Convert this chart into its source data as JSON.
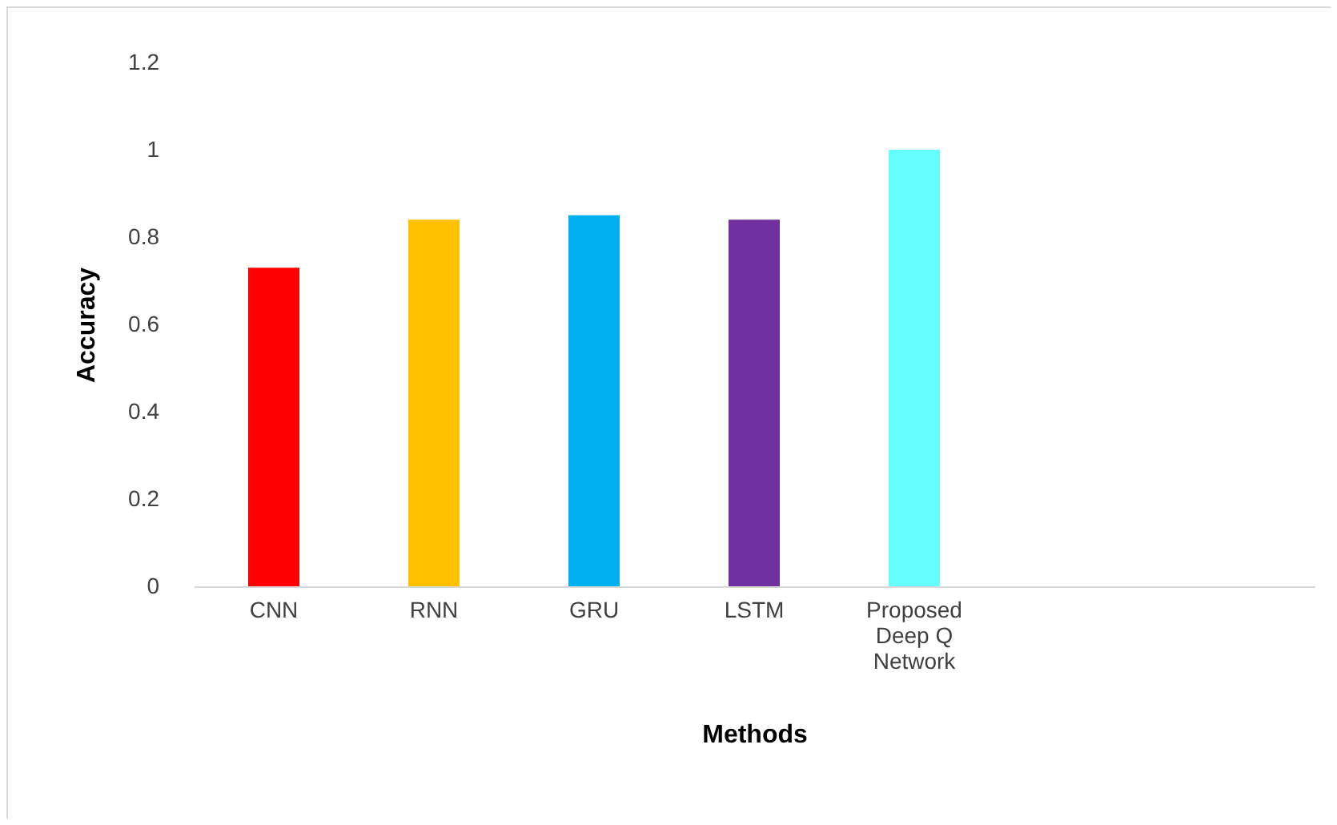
{
  "chart_data": {
    "type": "bar",
    "xlabel": "Methods",
    "ylabel": "Accuracy",
    "categories": [
      "CNN",
      "RNN",
      "GRU",
      "LSTM",
      "Proposed Deep Q Network",
      null,
      null
    ],
    "values": [
      0.73,
      0.84,
      0.85,
      0.84,
      1.0,
      null,
      null
    ],
    "colors": [
      "#ff0000",
      "#ffc000",
      "#00b0f0",
      "#7030a0",
      "#66ffff",
      null,
      null
    ],
    "ylim": [
      0,
      1.2
    ],
    "yticks": [
      0,
      0.2,
      0.4,
      0.6,
      0.8,
      1,
      1.2
    ],
    "grid": false
  }
}
